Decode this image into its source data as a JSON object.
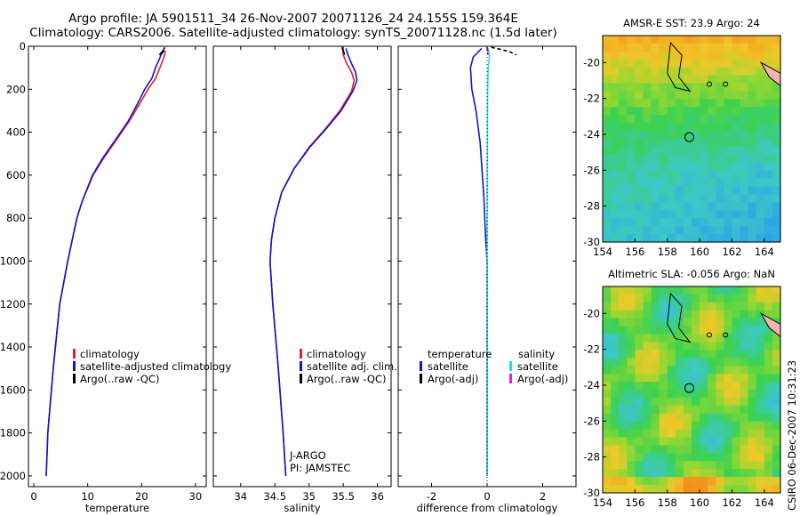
{
  "header": {
    "title_line1": "Argo profile: JA 5901511_34 26-Nov-2007 20071126_24 24.155S 159.364E",
    "title_line2": "Climatology: CARS2006. Satellite-adjusted climatology: synTS_20071128.nc (1.5d later)"
  },
  "footer": {
    "stamp": "CSIRO 06-Dec-2007 10:31:23"
  },
  "colors": {
    "climatology": "#e8202a",
    "satellite": "#1414c8",
    "argo": "#000000",
    "satellite_salinity": "#22e0e8",
    "argo_salinity_adj": "#e020e0"
  },
  "chart_data": [
    {
      "type": "line",
      "xlabel": "temperature",
      "ylabel": "",
      "xlim": [
        -1,
        32
      ],
      "ylim": [
        2050,
        0
      ],
      "xticks": [
        0,
        10,
        20,
        30
      ],
      "yticks": [
        0,
        200,
        400,
        600,
        800,
        1000,
        1200,
        1400,
        1600,
        1800,
        2000
      ],
      "legend": [
        "climatology",
        "satellite-adjusted climatology",
        "Argo(..raw -QC)"
      ],
      "series": [
        {
          "name": "climatology",
          "color": "#e8202a",
          "x": [
            24.4,
            24.3,
            24.0,
            23.4,
            22.6,
            21.2,
            19.6,
            17.7,
            15.5,
            13.0,
            11.0,
            9.0,
            8.0,
            6.3,
            4.8,
            3.6,
            2.6,
            2.3
          ],
          "y": [
            20,
            40,
            60,
            100,
            150,
            200,
            270,
            350,
            430,
            520,
            600,
            720,
            800,
            1000,
            1200,
            1500,
            1800,
            2000
          ]
        },
        {
          "name": "satellite-adjusted climatology",
          "color": "#1414c8",
          "x": [
            24.2,
            23.6,
            23.3,
            22.6,
            21.9,
            20.6,
            19.2,
            17.5,
            15.3,
            12.8,
            10.9,
            9.0,
            8.0,
            6.3,
            4.8,
            3.6,
            2.6,
            2.3
          ],
          "y": [
            20,
            40,
            60,
            100,
            150,
            200,
            270,
            350,
            430,
            520,
            600,
            720,
            800,
            1000,
            1200,
            1500,
            1800,
            2000
          ]
        },
        {
          "name": "Argo(..raw -QC)",
          "color": "#000000",
          "x": [
            24.3,
            24.2,
            24.0,
            23.3
          ],
          "y": [
            5,
            10,
            20,
            40
          ]
        }
      ]
    },
    {
      "type": "line",
      "xlabel": "salinity",
      "ylabel": "",
      "xlim": [
        33.6,
        36.2
      ],
      "ylim": [
        2050,
        0
      ],
      "xticks": [
        34,
        34.5,
        35,
        35.5,
        36
      ],
      "legend": [
        "climatology",
        "satellite adj. clim.",
        "Argo(..raw -QC)"
      ],
      "annotation": [
        "J-ARGO",
        "PI: JAMSTEC"
      ],
      "series": [
        {
          "name": "climatology",
          "color": "#e8202a",
          "x": [
            35.49,
            35.5,
            35.55,
            35.62,
            35.66,
            35.62,
            35.45,
            35.25,
            35.0,
            34.78,
            34.6,
            34.5,
            34.45,
            34.43,
            34.47,
            34.55,
            34.62,
            34.66
          ],
          "y": [
            10,
            40,
            80,
            120,
            160,
            210,
            300,
            380,
            470,
            570,
            680,
            800,
            900,
            1000,
            1200,
            1500,
            1800,
            2000
          ]
        },
        {
          "name": "satellite adj. clim.",
          "color": "#1414c8",
          "x": [
            35.54,
            35.57,
            35.62,
            35.68,
            35.7,
            35.64,
            35.47,
            35.26,
            35.01,
            34.78,
            34.6,
            34.5,
            34.45,
            34.43,
            34.47,
            34.55,
            34.62,
            34.66
          ],
          "y": [
            10,
            40,
            80,
            120,
            160,
            210,
            300,
            380,
            470,
            570,
            680,
            800,
            900,
            1000,
            1200,
            1500,
            1800,
            2000
          ]
        },
        {
          "name": "Argo(..raw -QC)",
          "color": "#000000",
          "x": [
            35.48,
            35.5,
            35.52
          ],
          "y": [
            5,
            20,
            40
          ]
        }
      ]
    },
    {
      "type": "line",
      "xlabel": "difference from climatology",
      "ylabel": "",
      "xlim": [
        -3.2,
        3.2
      ],
      "ylim": [
        2050,
        0
      ],
      "xticks": [
        -2,
        0,
        2
      ],
      "legend": [
        "temperature",
        "satellite",
        "Argo(-adj)",
        "salinity",
        "satellite",
        "Argo(-adj)"
      ],
      "series": [
        {
          "name": "temperature satellite",
          "color": "#1414c8",
          "x": [
            -0.2,
            -0.5,
            -0.6,
            -0.55,
            -0.4,
            -0.25,
            -0.12,
            -0.05,
            0.0,
            0.0
          ],
          "y": [
            10,
            50,
            100,
            200,
            300,
            450,
            700,
            900,
            1000,
            2000
          ]
        },
        {
          "name": "temperature Argo(-adj)",
          "color": "#000000",
          "x": [
            0.15,
            0.5,
            0.8,
            1.05
          ],
          "y": [
            5,
            15,
            25,
            40
          ]
        },
        {
          "name": "salinity satellite",
          "color": "#22e0e8",
          "x": [
            0.05,
            0.08,
            0.04,
            0.02,
            0.01,
            0.0,
            0.0
          ],
          "y": [
            10,
            50,
            100,
            200,
            400,
            800,
            2000
          ]
        },
        {
          "name": "salinity Argo(-adj)",
          "color": "#e020e0",
          "x": [
            0.0,
            0.02,
            0.03
          ],
          "y": [
            5,
            20,
            40
          ]
        }
      ]
    },
    {
      "type": "heatmap",
      "title": "AMSR-E SST: 23.9 Argo: 24",
      "xlim": [
        154,
        165
      ],
      "ylim": [
        -30,
        -18.5
      ],
      "xticks": [
        154,
        156,
        158,
        160,
        162,
        164
      ],
      "yticks": [
        -20,
        -22,
        -24,
        -26,
        -28,
        -30
      ],
      "marker": {
        "lon": 159.36,
        "lat": -24.16
      }
    },
    {
      "type": "heatmap",
      "title": "Altimetric SLA: -0.056 Argo: NaN",
      "xlim": [
        154,
        165
      ],
      "ylim": [
        -30,
        -18.5
      ],
      "xticks": [
        154,
        156,
        158,
        160,
        162,
        164
      ],
      "yticks": [
        -20,
        -22,
        -24,
        -26,
        -28,
        -30
      ],
      "marker": {
        "lon": 159.36,
        "lat": -24.16
      }
    }
  ]
}
